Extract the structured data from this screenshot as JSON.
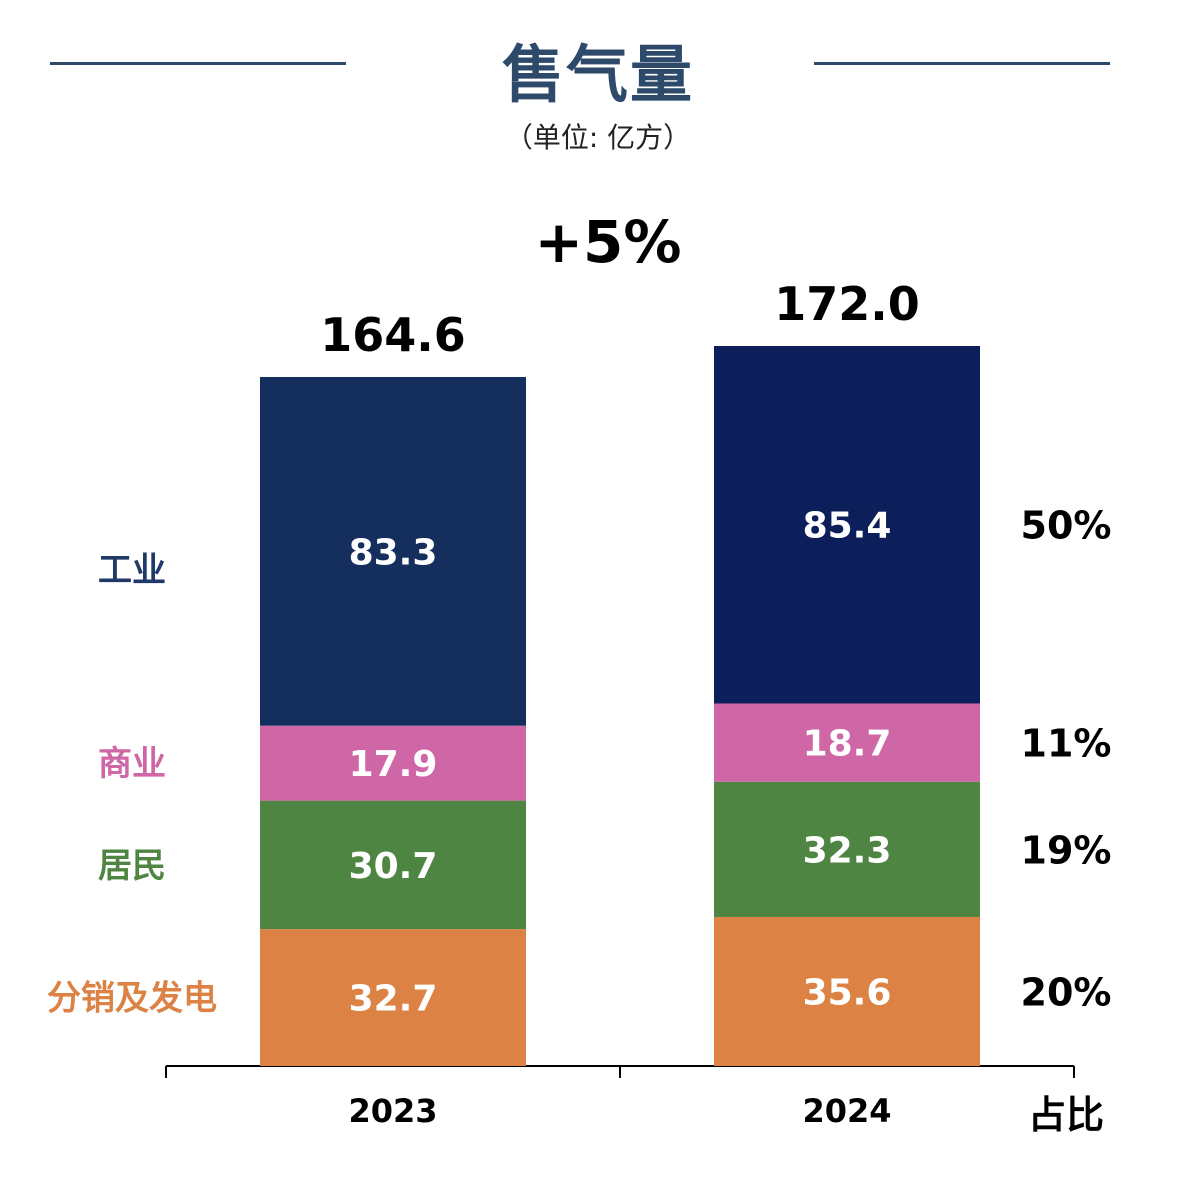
{
  "header": {
    "title": "售气量",
    "unit": "（单位: 亿方）",
    "growth": "+5%"
  },
  "share_header": "占比",
  "chart_data": {
    "type": "bar",
    "stacked": true,
    "categories": [
      "2023",
      "2024"
    ],
    "totals": [
      "164.6",
      "172.0"
    ],
    "series": [
      {
        "name": "分销及发电",
        "values": [
          32.7,
          35.6
        ],
        "labels": [
          "32.7",
          "35.6"
        ],
        "share": "20%",
        "color": "#dc8244",
        "label_color": "#dc8244"
      },
      {
        "name": "居民",
        "values": [
          30.7,
          32.3
        ],
        "labels": [
          "30.7",
          "32.3"
        ],
        "share": "19%",
        "color": "#4f8543",
        "label_color": "#4f8543"
      },
      {
        "name": "商业",
        "values": [
          17.9,
          18.7
        ],
        "labels": [
          "17.9",
          "18.7"
        ],
        "share": "11%",
        "color": "#cf66a6",
        "label_color": "#cf66a6"
      },
      {
        "name": "工业",
        "values": [
          83.3,
          85.4
        ],
        "labels": [
          "83.3",
          "85.4"
        ],
        "share": "50%",
        "color": "#142f5e",
        "label_color": "#1f3a68"
      }
    ],
    "bar_colors_top": [
      "#142f5e",
      "#0d1f5a"
    ],
    "ylim": [
      0,
      172
    ],
    "grid": false,
    "legend": "left"
  }
}
